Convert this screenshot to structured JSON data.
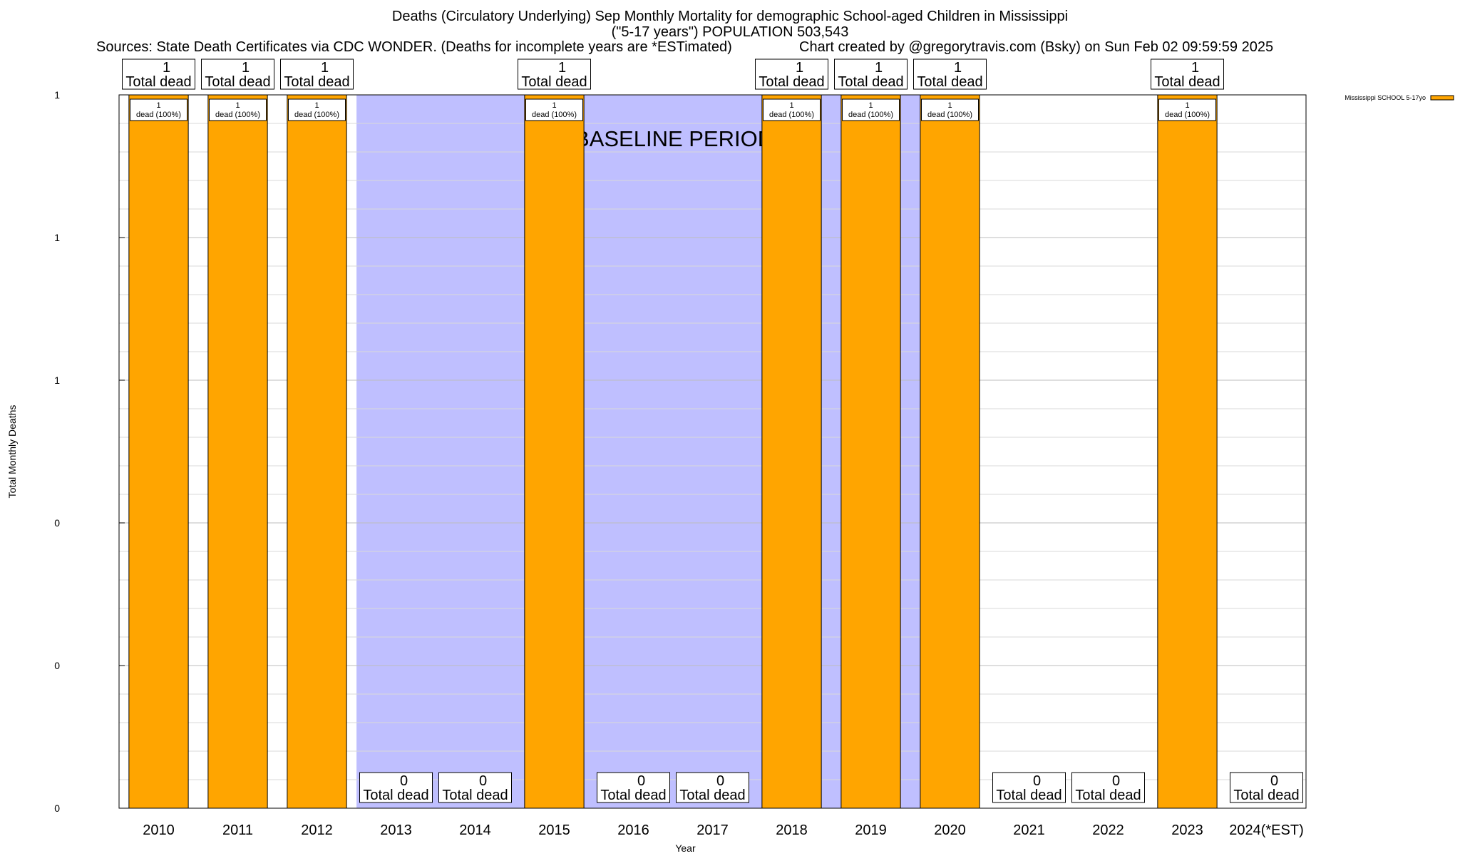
{
  "chart_data": {
    "type": "bar",
    "title": "Deaths (Circulatory Underlying) Sep Monthly Mortality for demographic School-aged Children in Mississippi",
    "subtitle": "(\"5-17 years\") POPULATION 503,543",
    "sources": "Sources: State Death Certificates via CDC WONDER. (Deaths for incomplete years are *ESTimated)",
    "credit": "Chart created by @gregorytravis.com (Bsky) on Sun Feb 02 09:59:59 2025",
    "xlabel": "Year",
    "ylabel": "Total Monthly Deaths",
    "categories": [
      "2010",
      "2011",
      "2012",
      "2013",
      "2014",
      "2015",
      "2016",
      "2017",
      "2018",
      "2019",
      "2020",
      "2021",
      "2022",
      "2023",
      "2024(*EST)"
    ],
    "series": [
      {
        "name": "Mississippi SCHOOL 5-17yo",
        "color": "#ffa500",
        "values": [
          1,
          1,
          1,
          0,
          0,
          1,
          0,
          0,
          1,
          1,
          1,
          0,
          0,
          1,
          0
        ]
      }
    ],
    "ylim": [
      0,
      1
    ],
    "yticks": [
      {
        "value": 0,
        "label": "0"
      },
      {
        "value": 0.2,
        "label": "0"
      },
      {
        "value": 0.4,
        "label": "0"
      },
      {
        "value": 0.6,
        "label": "1"
      },
      {
        "value": 0.8,
        "label": "1"
      },
      {
        "value": 1,
        "label": "1"
      }
    ],
    "total_labels": [
      "1",
      "1",
      "1",
      "0",
      "0",
      "1",
      "0",
      "0",
      "1",
      "1",
      "1",
      "0",
      "0",
      "1",
      "0"
    ],
    "total_suffix": "Total dead",
    "bar_labels": [
      "1",
      "1",
      "1",
      "",
      "",
      "1",
      "",
      "",
      "1",
      "1",
      "1",
      "",
      "",
      "1",
      ""
    ],
    "bar_label_suffix": "dead (100%)",
    "baseline": {
      "label": "BASELINE PERIOD",
      "from": "2012",
      "to": "2019",
      "color": "#bfbfff"
    },
    "grid": true,
    "legend": "top-right"
  }
}
